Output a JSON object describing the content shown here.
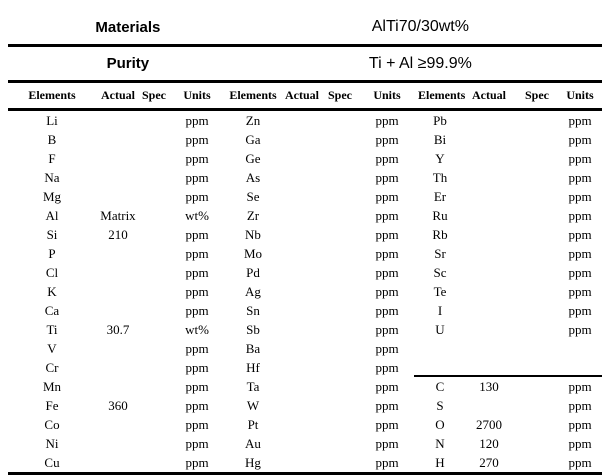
{
  "title_rows": [
    {
      "label": "Materials",
      "value": "AlTi70/30wt%"
    },
    {
      "label": "Purity",
      "value": "Ti + Al ≥99.9%"
    }
  ],
  "column_headers": [
    "Elements",
    "Actual",
    "Spec",
    "Units"
  ],
  "groups": [
    {
      "name": "group-1",
      "rows": [
        {
          "element": "Li",
          "actual": "",
          "spec": "",
          "units": "ppm"
        },
        {
          "element": "B",
          "actual": "",
          "spec": "",
          "units": "ppm"
        },
        {
          "element": "F",
          "actual": "",
          "spec": "",
          "units": "ppm"
        },
        {
          "element": "Na",
          "actual": "",
          "spec": "",
          "units": "ppm"
        },
        {
          "element": "Mg",
          "actual": "",
          "spec": "",
          "units": "ppm"
        },
        {
          "element": "Al",
          "actual": "Matrix",
          "spec": "",
          "units": "wt%"
        },
        {
          "element": "Si",
          "actual": "210",
          "spec": "",
          "units": "ppm"
        },
        {
          "element": "P",
          "actual": "",
          "spec": "",
          "units": "ppm"
        },
        {
          "element": "Cl",
          "actual": "",
          "spec": "",
          "units": "ppm"
        },
        {
          "element": "K",
          "actual": "",
          "spec": "",
          "units": "ppm"
        },
        {
          "element": "Ca",
          "actual": "",
          "spec": "",
          "units": "ppm"
        },
        {
          "element": "Ti",
          "actual": "30.7",
          "spec": "",
          "units": "wt%"
        },
        {
          "element": "V",
          "actual": "",
          "spec": "",
          "units": "ppm"
        },
        {
          "element": "Cr",
          "actual": "",
          "spec": "",
          "units": "ppm"
        },
        {
          "element": "Mn",
          "actual": "",
          "spec": "",
          "units": "ppm"
        },
        {
          "element": "Fe",
          "actual": "360",
          "spec": "",
          "units": "ppm"
        },
        {
          "element": "Co",
          "actual": "",
          "spec": "",
          "units": "ppm"
        },
        {
          "element": "Ni",
          "actual": "",
          "spec": "",
          "units": "ppm"
        },
        {
          "element": "Cu",
          "actual": "",
          "spec": "",
          "units": "ppm"
        }
      ]
    },
    {
      "name": "group-2",
      "rows": [
        {
          "element": "Zn",
          "actual": "",
          "spec": "",
          "units": "ppm"
        },
        {
          "element": "Ga",
          "actual": "",
          "spec": "",
          "units": "ppm"
        },
        {
          "element": "Ge",
          "actual": "",
          "spec": "",
          "units": "ppm"
        },
        {
          "element": "As",
          "actual": "",
          "spec": "",
          "units": "ppm"
        },
        {
          "element": "Se",
          "actual": "",
          "spec": "",
          "units": "ppm"
        },
        {
          "element": "Zr",
          "actual": "",
          "spec": "",
          "units": "ppm"
        },
        {
          "element": "Nb",
          "actual": "",
          "spec": "",
          "units": "ppm"
        },
        {
          "element": "Mo",
          "actual": "",
          "spec": "",
          "units": "ppm"
        },
        {
          "element": "Pd",
          "actual": "",
          "spec": "",
          "units": "ppm"
        },
        {
          "element": "Ag",
          "actual": "",
          "spec": "",
          "units": "ppm"
        },
        {
          "element": "Sn",
          "actual": "",
          "spec": "",
          "units": "ppm"
        },
        {
          "element": "Sb",
          "actual": "",
          "spec": "",
          "units": "ppm"
        },
        {
          "element": "Ba",
          "actual": "",
          "spec": "",
          "units": "ppm"
        },
        {
          "element": "Hf",
          "actual": "",
          "spec": "",
          "units": "ppm"
        },
        {
          "element": "Ta",
          "actual": "",
          "spec": "",
          "units": "ppm"
        },
        {
          "element": "W",
          "actual": "",
          "spec": "",
          "units": "ppm"
        },
        {
          "element": "Pt",
          "actual": "",
          "spec": "",
          "units": "ppm"
        },
        {
          "element": "Au",
          "actual": "",
          "spec": "",
          "units": "ppm"
        },
        {
          "element": "Hg",
          "actual": "",
          "spec": "",
          "units": "ppm"
        }
      ]
    },
    {
      "name": "group-3",
      "separator_above_row_index": 14,
      "rows": [
        {
          "element": "Pb",
          "actual": "",
          "spec": "",
          "units": "ppm"
        },
        {
          "element": "Bi",
          "actual": "",
          "spec": "",
          "units": "ppm"
        },
        {
          "element": "Y",
          "actual": "",
          "spec": "",
          "units": "ppm"
        },
        {
          "element": "Th",
          "actual": "",
          "spec": "",
          "units": "ppm"
        },
        {
          "element": "Er",
          "actual": "",
          "spec": "",
          "units": "ppm"
        },
        {
          "element": "Ru",
          "actual": "",
          "spec": "",
          "units": "ppm"
        },
        {
          "element": "Rb",
          "actual": "",
          "spec": "",
          "units": "ppm"
        },
        {
          "element": "Sr",
          "actual": "",
          "spec": "",
          "units": "ppm"
        },
        {
          "element": "Sc",
          "actual": "",
          "spec": "",
          "units": "ppm"
        },
        {
          "element": "Te",
          "actual": "",
          "spec": "",
          "units": "ppm"
        },
        {
          "element": "I",
          "actual": "",
          "spec": "",
          "units": "ppm"
        },
        {
          "element": "U",
          "actual": "",
          "spec": "",
          "units": "ppm"
        },
        {
          "element": "",
          "actual": "",
          "spec": "",
          "units": ""
        },
        {
          "element": "",
          "actual": "",
          "spec": "",
          "units": ""
        },
        {
          "element": "C",
          "actual": "130",
          "spec": "",
          "units": "ppm"
        },
        {
          "element": "S",
          "actual": "",
          "spec": "",
          "units": "ppm"
        },
        {
          "element": "O",
          "actual": "2700",
          "spec": "",
          "units": "ppm"
        },
        {
          "element": "N",
          "actual": "120",
          "spec": "",
          "units": "ppm"
        },
        {
          "element": "H",
          "actual": "270",
          "spec": "",
          "units": "ppm"
        }
      ]
    }
  ],
  "colors": {
    "text": "#000000",
    "background": "#ffffff",
    "rule": "#000000"
  }
}
